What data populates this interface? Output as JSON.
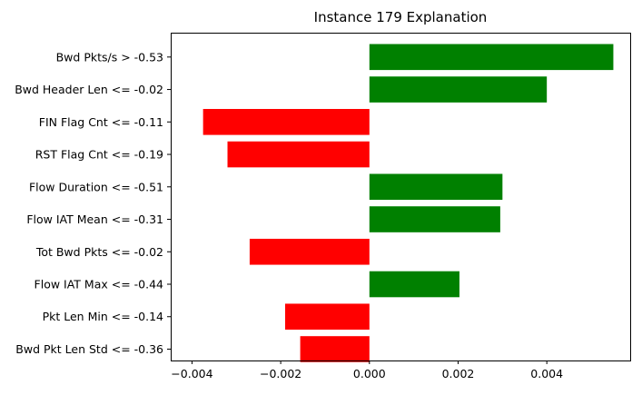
{
  "chart_data": {
    "type": "bar",
    "orientation": "horizontal",
    "title": "Instance 179 Explanation",
    "xlabel": "",
    "ylabel": "",
    "xlim": [
      -0.00448,
      0.00588
    ],
    "xticks": [
      -0.004,
      -0.002,
      0.0,
      0.002,
      0.004
    ],
    "xtick_labels": [
      "−0.004",
      "−0.002",
      "0.000",
      "0.002",
      "0.004"
    ],
    "categories": [
      "Bwd Pkts/s > -0.53",
      "Bwd Header Len <= -0.02",
      "FIN Flag Cnt <= -0.11",
      "RST Flag Cnt <= -0.19",
      "Flow Duration <= -0.51",
      "Flow IAT Mean <= -0.31",
      "Tot Bwd Pkts <= -0.02",
      "Flow IAT Max <= -0.44",
      "Pkt Len Min <= -0.14",
      "Bwd Pkt Len Std <= -0.36"
    ],
    "values": [
      0.0055,
      0.004,
      -0.00375,
      -0.0032,
      0.003,
      0.00295,
      -0.0027,
      0.00203,
      -0.0019,
      -0.00156
    ],
    "colors": {
      "positive": "#008000",
      "negative": "#ff0000"
    },
    "grid": false,
    "legend": "none"
  }
}
